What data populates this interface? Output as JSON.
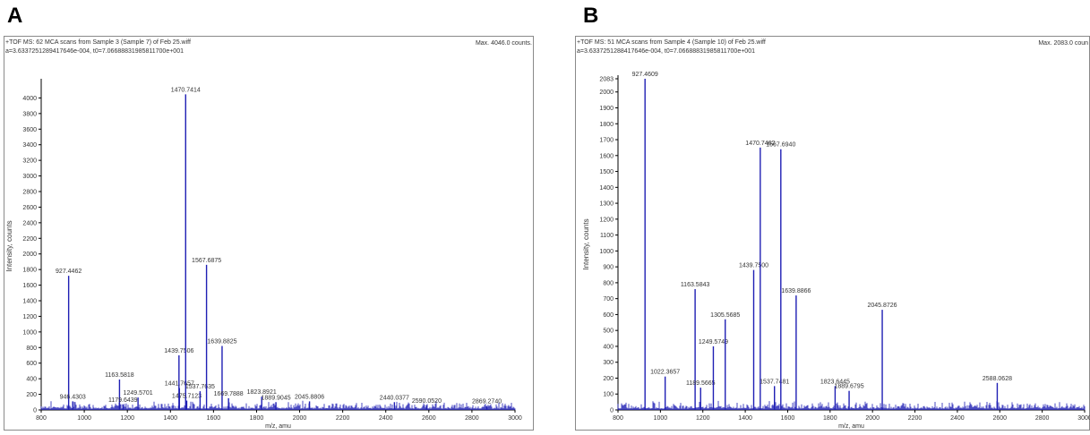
{
  "panels": [
    {
      "letter": "A",
      "header_line1": "+TOF MS: 62 MCA scans from Sample 3 (Sample 7) of Feb 25.wiff",
      "header_line2": "a=3.6337251289417646e-004, t0=7.06688831985811700e+001",
      "max_text": "Max. 4046.0 counts.",
      "ylabel": "Intensity, counts",
      "xlabel": "m/z, amu"
    },
    {
      "letter": "B",
      "header_line1": "+TOF MS: 51 MCA scans from Sample 4 (Sample 10) of Feb 25.wiff",
      "header_line2": "a=3.6337251288417646e-004, t0=7.06688831985811700e+001",
      "max_text": "Max. 2083.0 coun",
      "ylabel": "Intensity, counts",
      "xlabel": "m/z, amu"
    }
  ],
  "colors": {
    "trace": "#1f1fb4",
    "frame": "#8a8a8a",
    "text": "#333333"
  },
  "chart_data": [
    {
      "type": "line",
      "xlabel": "m/z, amu",
      "ylabel": "Intensity, counts",
      "xlim": [
        800,
        3000
      ],
      "ylim": [
        0,
        4200
      ],
      "xticks": [
        800,
        1000,
        1200,
        1400,
        1600,
        1800,
        2000,
        2200,
        2400,
        2600,
        2800,
        3000
      ],
      "yticks": [
        0,
        200,
        400,
        600,
        800,
        1000,
        1200,
        1400,
        1600,
        1800,
        2000,
        2200,
        2400,
        2600,
        2800,
        3000,
        3200,
        3400,
        3600,
        3800,
        4000
      ],
      "peaks": [
        {
          "x": 927.4462,
          "y": 1720,
          "label": "927.4462"
        },
        {
          "x": 946.4303,
          "y": 110,
          "label": "946.4303"
        },
        {
          "x": 1163.5818,
          "y": 390,
          "label": "1163.5818"
        },
        {
          "x": 1179.6439,
          "y": 70,
          "label": "1179.6439"
        },
        {
          "x": 1249.5701,
          "y": 160,
          "label": "1249.5701"
        },
        {
          "x": 1439.7506,
          "y": 700,
          "label": "1439.7506"
        },
        {
          "x": 1441.7657,
          "y": 280,
          "label": "1441.7657"
        },
        {
          "x": 1470.7414,
          "y": 4046,
          "label": "1470.7414"
        },
        {
          "x": 1475.7123,
          "y": 120,
          "label": "1475.7123"
        },
        {
          "x": 1537.7635,
          "y": 240,
          "label": "1537.7635"
        },
        {
          "x": 1567.6875,
          "y": 1860,
          "label": "1567.6875"
        },
        {
          "x": 1639.8825,
          "y": 820,
          "label": "1639.8825"
        },
        {
          "x": 1669.7888,
          "y": 150,
          "label": "1669.7888"
        },
        {
          "x": 1823.8921,
          "y": 170,
          "label": "1823.8921"
        },
        {
          "x": 1889.9045,
          "y": 100,
          "label": "1889.9045"
        },
        {
          "x": 2045.8806,
          "y": 110,
          "label": "2045.8806"
        },
        {
          "x": 2440.0377,
          "y": 100,
          "label": "2440.0377"
        },
        {
          "x": 2590.052,
          "y": 60,
          "label": "2590.0520"
        },
        {
          "x": 2869.274,
          "y": 50,
          "label": "2869.2740"
        }
      ]
    },
    {
      "type": "line",
      "xlabel": "m/z, amu",
      "ylabel": "Intensity, counts",
      "xlim": [
        800,
        3000
      ],
      "ylim": [
        0,
        2083
      ],
      "xticks": [
        800,
        1000,
        1200,
        1400,
        1600,
        1800,
        2000,
        2200,
        2400,
        2600,
        2800,
        3000
      ],
      "yticks": [
        0,
        100,
        200,
        300,
        400,
        500,
        600,
        700,
        800,
        900,
        1000,
        1100,
        1200,
        1300,
        1400,
        1500,
        1600,
        1700,
        1800,
        1900,
        2000,
        2083
      ],
      "peaks": [
        {
          "x": 927.4609,
          "y": 2083,
          "label": "927.4609"
        },
        {
          "x": 1022.3657,
          "y": 210,
          "label": "1022.3657"
        },
        {
          "x": 1163.5843,
          "y": 760,
          "label": "1163.5843"
        },
        {
          "x": 1189.5665,
          "y": 140,
          "label": "1189.5665"
        },
        {
          "x": 1249.5749,
          "y": 400,
          "label": "1249.5749"
        },
        {
          "x": 1305.5685,
          "y": 570,
          "label": "1305.5685"
        },
        {
          "x": 1439.75,
          "y": 880,
          "label": "1439.7500"
        },
        {
          "x": 1470.7462,
          "y": 1650,
          "label": "1470.7462"
        },
        {
          "x": 1537.7481,
          "y": 150,
          "label": "1537.7481"
        },
        {
          "x": 1567.694,
          "y": 1640,
          "label": "1567.6940"
        },
        {
          "x": 1639.8866,
          "y": 720,
          "label": "1639.8866"
        },
        {
          "x": 1823.6445,
          "y": 150,
          "label": "1823.6445"
        },
        {
          "x": 1889.6795,
          "y": 120,
          "label": "1889.6795"
        },
        {
          "x": 2045.8726,
          "y": 630,
          "label": "2045.8726"
        },
        {
          "x": 2588.0628,
          "y": 170,
          "label": "2588.0628"
        }
      ]
    }
  ]
}
